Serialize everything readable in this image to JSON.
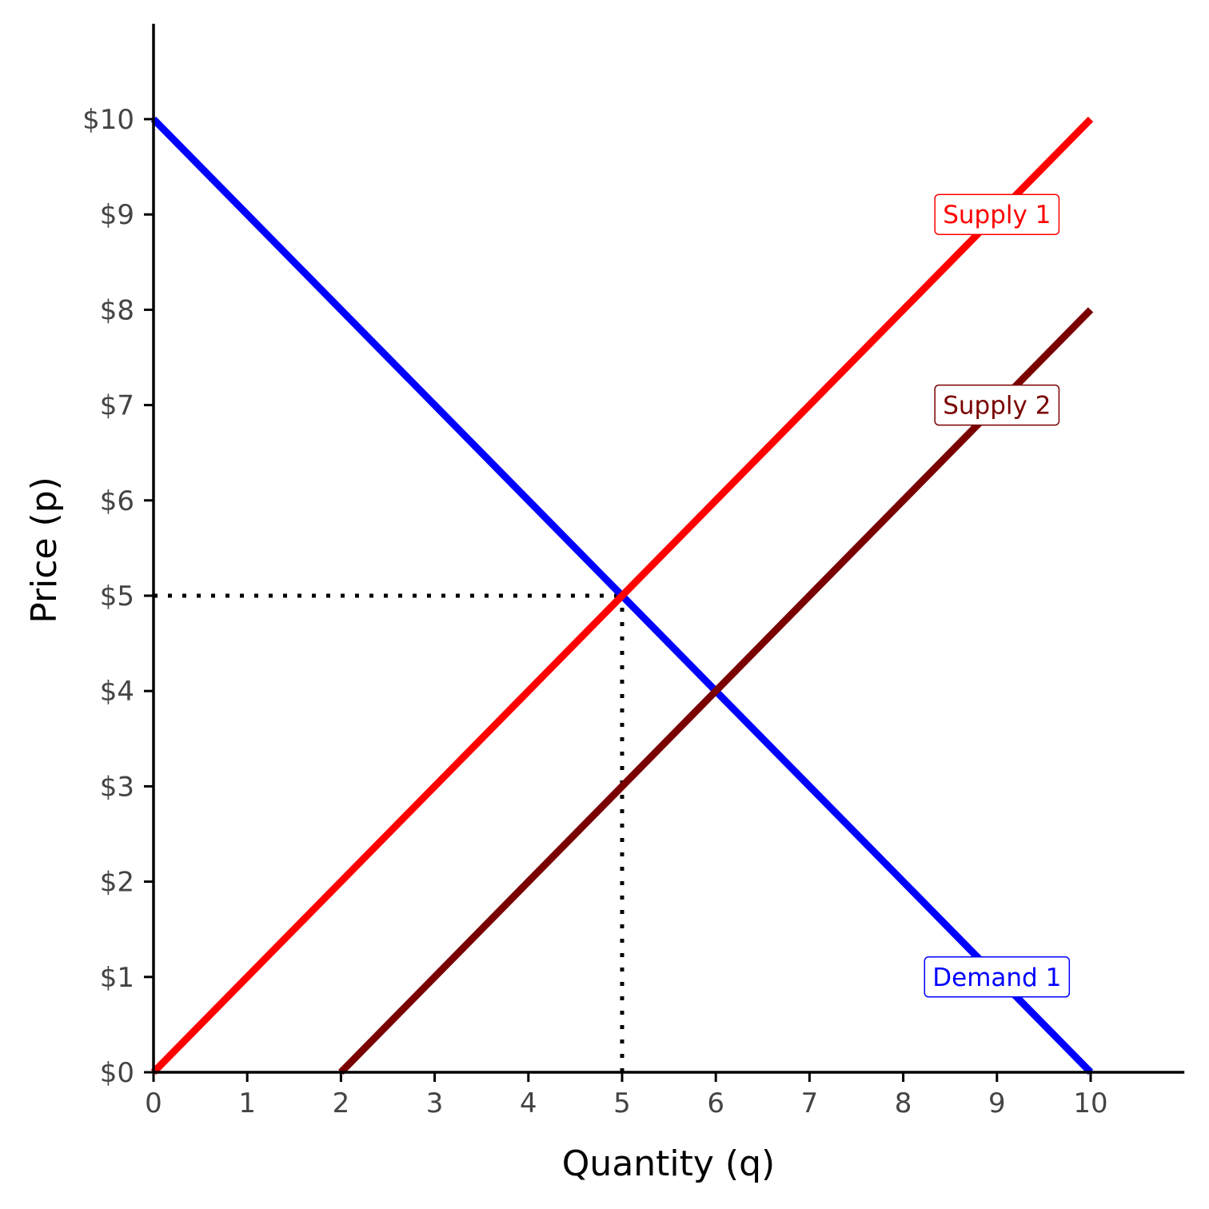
{
  "chart_data": {
    "type": "line",
    "xlabel": "Quantity (q)",
    "ylabel": "Price (p)",
    "xlim": [
      0,
      11
    ],
    "ylim": [
      0,
      11
    ],
    "x_ticks": [
      0,
      1,
      2,
      3,
      4,
      5,
      6,
      7,
      8,
      9,
      10
    ],
    "x_tick_labels": [
      "0",
      "1",
      "2",
      "3",
      "4",
      "5",
      "6",
      "7",
      "8",
      "9",
      "10"
    ],
    "y_ticks": [
      0,
      1,
      2,
      3,
      4,
      5,
      6,
      7,
      8,
      9,
      10
    ],
    "y_tick_labels": [
      "$0",
      "$1",
      "$2",
      "$3",
      "$4",
      "$5",
      "$6",
      "$7",
      "$8",
      "$9",
      "$10"
    ],
    "grid": false,
    "series": [
      {
        "name": "Demand 1",
        "color": "#0000ff",
        "x": [
          0,
          10
        ],
        "y": [
          10,
          0
        ],
        "label_at": [
          9,
          1
        ]
      },
      {
        "name": "Supply 1",
        "color": "#ff0000",
        "x": [
          0,
          10
        ],
        "y": [
          0,
          10
        ],
        "label_at": [
          9,
          9
        ]
      },
      {
        "name": "Supply 2",
        "color": "#7a0000",
        "x": [
          2,
          10
        ],
        "y": [
          0,
          8
        ],
        "label_at": [
          9,
          7
        ]
      }
    ],
    "reference_lines": [
      {
        "style": "dotted",
        "color": "#000000",
        "x": [
          0,
          5
        ],
        "y": [
          5,
          5
        ]
      },
      {
        "style": "dotted",
        "color": "#000000",
        "x": [
          5,
          5
        ],
        "y": [
          0,
          5
        ]
      }
    ]
  }
}
